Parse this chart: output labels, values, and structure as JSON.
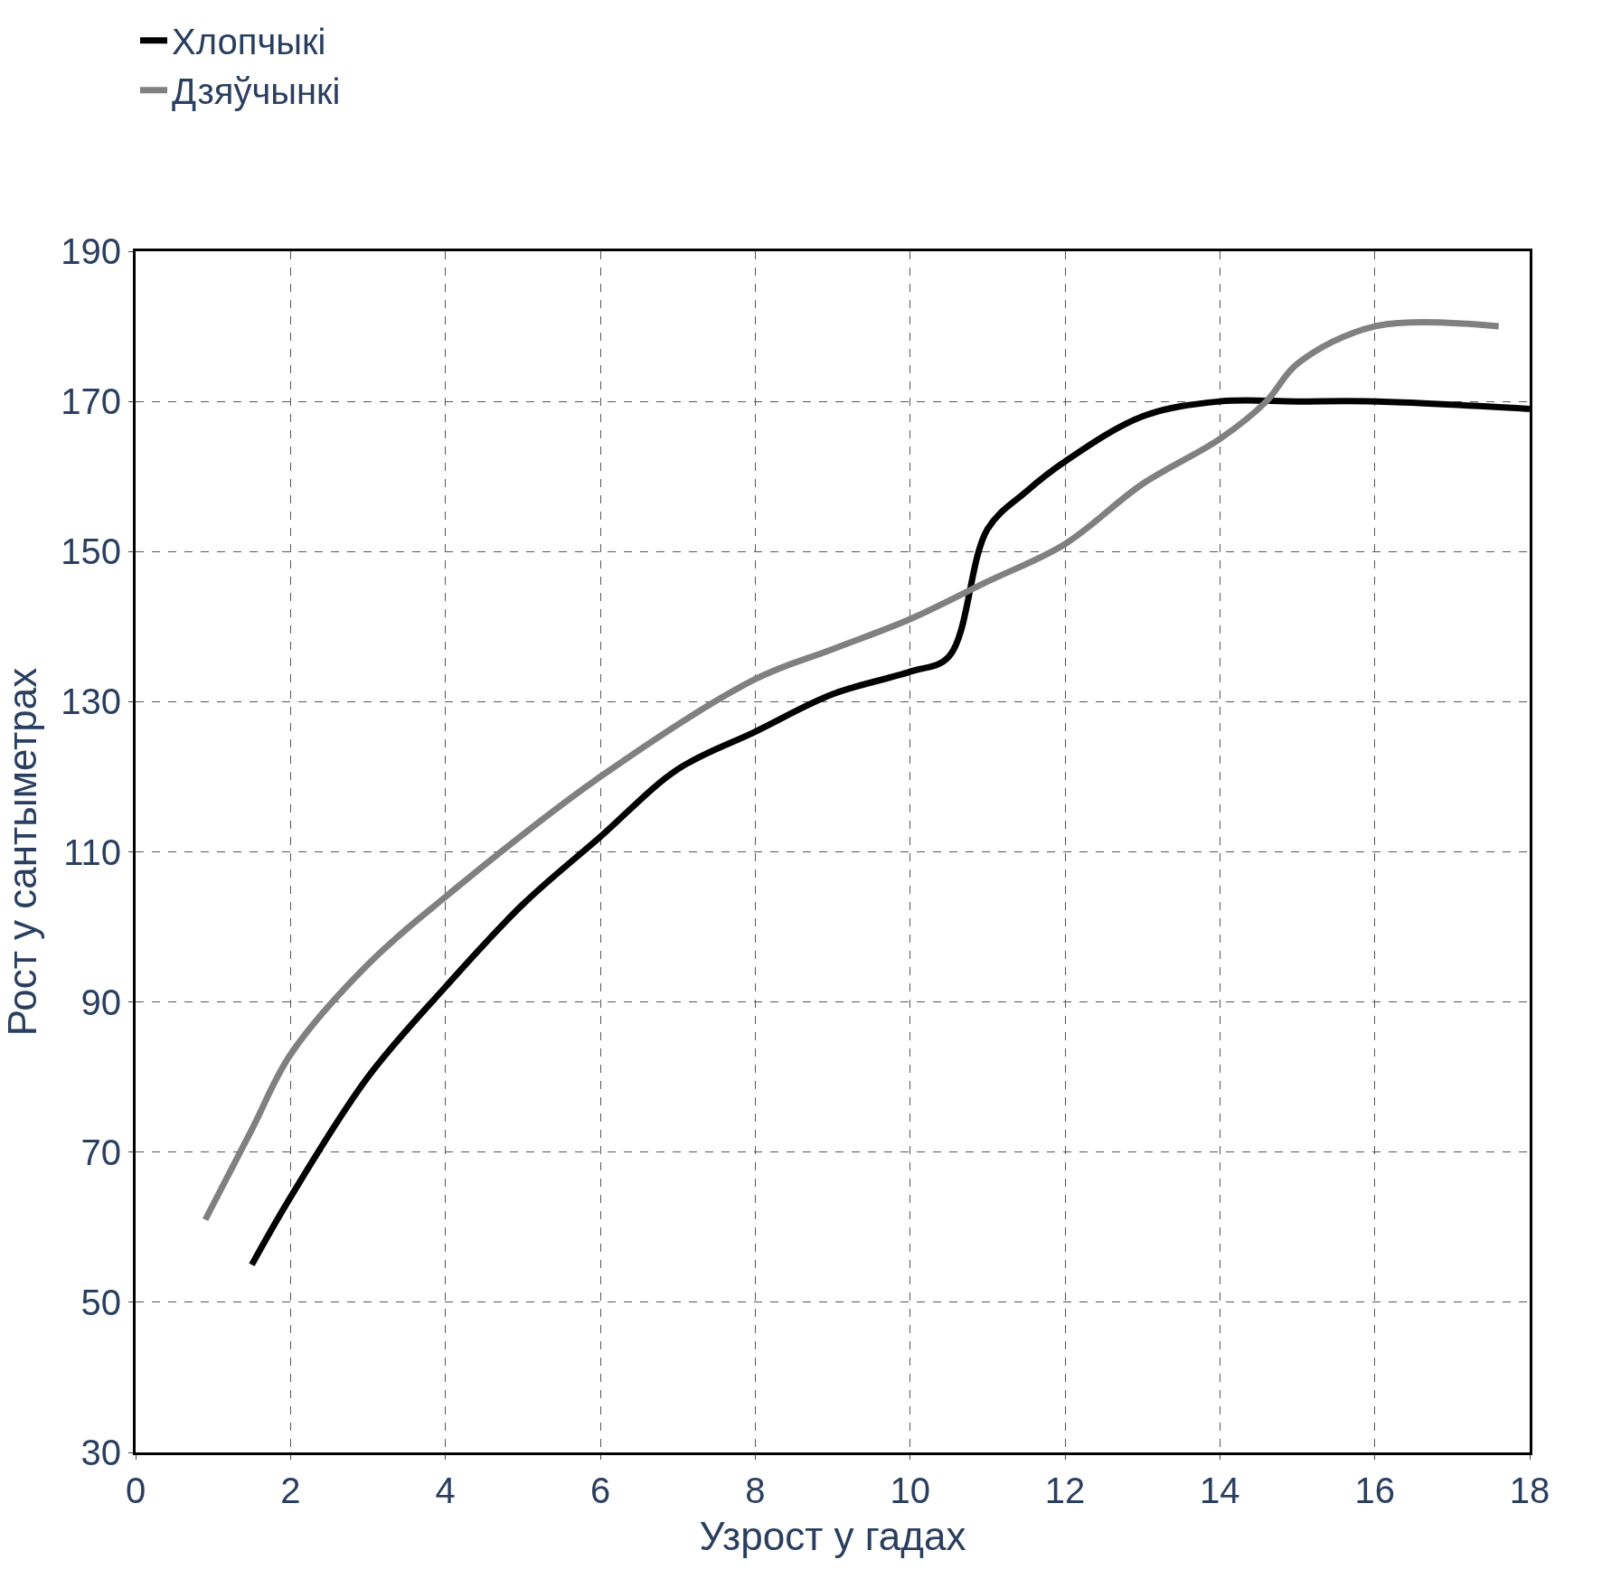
{
  "chart_data": {
    "type": "line",
    "xlabel": "Узрост у гадах",
    "ylabel": "Рост у сантыметрах",
    "xlim": [
      0,
      18
    ],
    "ylim": [
      30,
      190
    ],
    "xticks": [
      0,
      2,
      4,
      6,
      8,
      10,
      12,
      14,
      16,
      18
    ],
    "yticks": [
      30,
      50,
      70,
      90,
      110,
      130,
      150,
      170,
      190
    ],
    "grid": true,
    "legend": "top left",
    "line_style": "solid",
    "series": [
      {
        "name": "Хлопчыкі",
        "color": "#000000",
        "x": [
          1.5,
          2,
          3,
          4,
          5,
          6,
          7,
          8,
          9,
          10,
          10.5,
          11,
          11.5,
          12,
          13,
          14,
          15,
          16,
          18
        ],
        "values": [
          55,
          64,
          80,
          92,
          103,
          112,
          121,
          126,
          131,
          134,
          136,
          153,
          158,
          162,
          168,
          170,
          170,
          170,
          169
        ]
      },
      {
        "name": "Дзяўчынкі",
        "color": "#808080",
        "x": [
          0.9,
          1.5,
          2,
          3,
          4,
          6,
          8,
          9,
          10,
          11,
          12,
          13,
          14,
          14.6,
          15,
          16,
          17.6
        ],
        "values": [
          61,
          73,
          83,
          95,
          104,
          120,
          133,
          137,
          141,
          146,
          151,
          159,
          165,
          170,
          175,
          180,
          180
        ]
      }
    ]
  }
}
